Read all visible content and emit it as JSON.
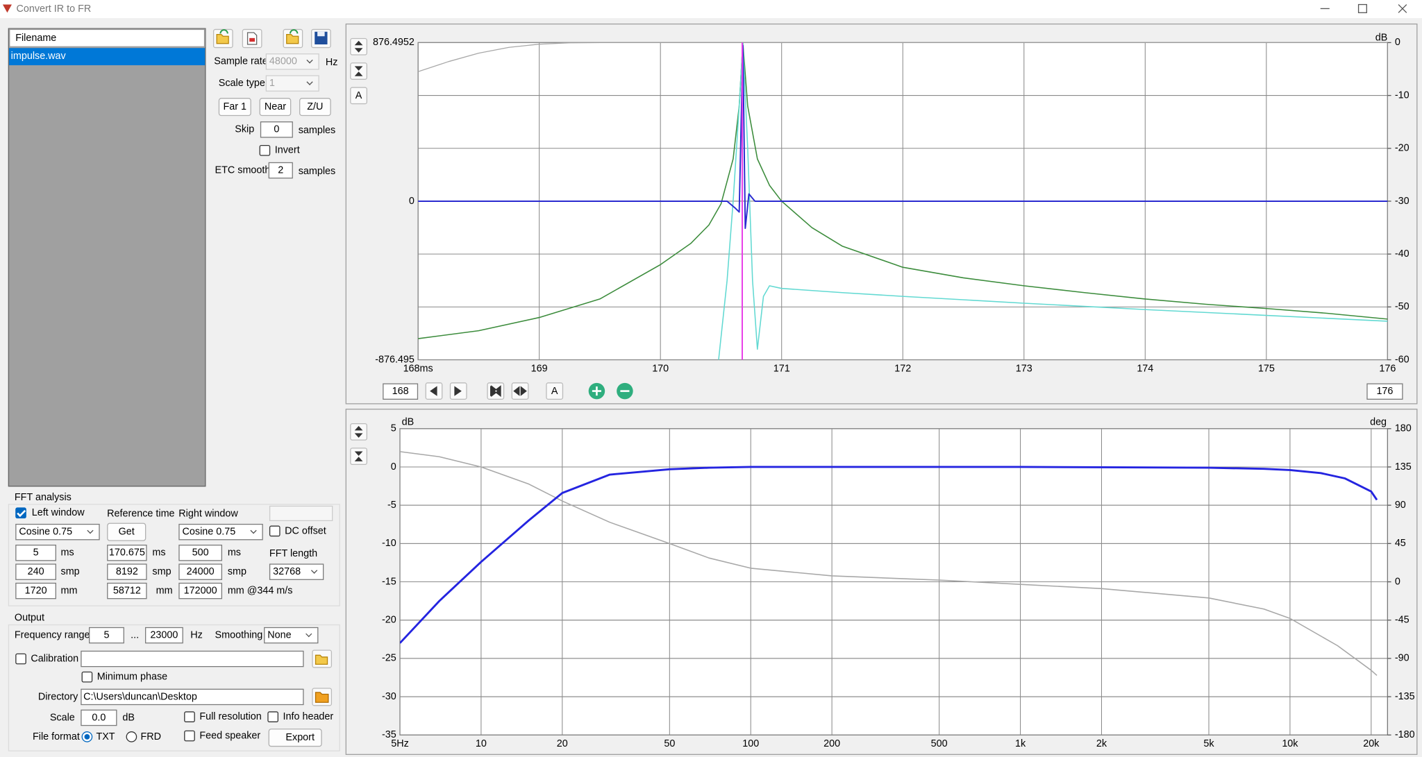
{
  "window": {
    "title": "Convert IR to FR"
  },
  "file_list": {
    "header": "Filename",
    "items": [
      "impulse.wav"
    ]
  },
  "settings": {
    "sample_rate": {
      "label": "Sample rate",
      "value": "48000",
      "unit": "Hz"
    },
    "scale_type": {
      "label": "Scale type",
      "value": "1"
    },
    "buttons": [
      "Far 1",
      "Near",
      "Z/U"
    ],
    "skip": {
      "label": "Skip",
      "value": "0",
      "unit": "samples"
    },
    "invert": "Invert",
    "etc_smooth": {
      "label": "ETC smooth",
      "value": "2",
      "unit": "samples"
    }
  },
  "impulse_toolbar": {
    "auto_side": "A",
    "auto_bottom": "A",
    "start": "168",
    "end": "176"
  },
  "fft": {
    "title": "FFT analysis",
    "left_window": {
      "label": "Left window",
      "type": "Cosine 0.75",
      "ms": "5",
      "smp": "240",
      "mm": "1720"
    },
    "reference_time": {
      "label": "Reference time",
      "button": "Get",
      "ms": 170.675,
      "smp": "8192",
      "mm": "58712"
    },
    "right_window": {
      "label": "Right window",
      "type": "Cosine 0.75",
      "ms": "500",
      "smp": "24000",
      "mm": "172000"
    },
    "dc_offset": "DC offset",
    "fft_length": {
      "label": "FFT length",
      "value": "32768"
    },
    "units": {
      "ms": "ms",
      "smp": "smp",
      "mm": "mm",
      "mm_speed": "mm @344 m/s"
    }
  },
  "output": {
    "title": "Output",
    "frequency_range": {
      "label": "Frequency range",
      "from": "5",
      "separator": "...",
      "to": "23000",
      "unit": "Hz"
    },
    "smoothing": {
      "label": "Smoothing",
      "value": "None"
    },
    "calibration": "Calibration",
    "minimum_phase": "Minimum phase",
    "directory": {
      "label": "Directory",
      "value": "C:\\Users\\duncan\\Desktop"
    },
    "scale": {
      "label": "Scale",
      "value": "0.0",
      "unit": "dB"
    },
    "full_resolution": "Full resolution",
    "info_header": "Info header",
    "file_format": {
      "label": "File format",
      "options": [
        "TXT",
        "FRD"
      ]
    },
    "feed_speaker": "Feed speaker",
    "export": "Export"
  },
  "chart_data": [
    {
      "type": "line",
      "xscale": "linear",
      "xlim": [
        168,
        176
      ],
      "xticks": [
        {
          "value": 168,
          "label": "168ms"
        },
        169,
        170,
        171,
        172,
        173,
        174,
        175,
        176
      ],
      "ylim": [
        -876.495,
        876.4952
      ],
      "yticks": [
        876.4952,
        0,
        -876.495
      ],
      "y2lim": [
        -60,
        0
      ],
      "y2ticks": [
        0,
        -10,
        -20,
        -30,
        -40,
        -50,
        -60
      ],
      "y2label": "dB",
      "grid": true,
      "cursor_color": "#e83ce8",
      "series": [
        {
          "color": "#a8a8a8",
          "line_width": 1,
          "axis": "y2",
          "x": [
            168,
            168.25,
            168.5,
            168.75,
            169,
            169.25,
            169.5,
            176
          ],
          "values": [
            -5.5,
            -3.6,
            -2,
            -0.9,
            -0.3,
            -0.05,
            0,
            0
          ]
        },
        {
          "color": "#3c8c3c",
          "line_width": 1.2,
          "axis": "y2",
          "x": [
            168,
            168.5,
            169,
            169.5,
            170,
            170.25,
            170.4,
            170.5,
            170.6,
            170.65,
            170.68,
            170.72,
            170.8,
            170.9,
            171,
            171.25,
            171.5,
            172,
            172.5,
            173,
            173.5,
            174,
            174.5,
            175,
            175.5,
            176
          ],
          "values": [
            -56,
            -54.5,
            -52,
            -48.5,
            -42,
            -38,
            -34.5,
            -30.5,
            -22,
            -12,
            0,
            -12,
            -22,
            -27,
            -30,
            -35,
            -38.5,
            -42.5,
            -44.5,
            -46,
            -47.3,
            -48.5,
            -49.5,
            -50.3,
            -51.2,
            -52.3
          ]
        },
        {
          "color": "#62d9d2",
          "line_width": 1.2,
          "axis": "y2",
          "x": [
            170.48,
            170.55,
            170.6,
            170.65,
            170.68,
            170.72,
            170.76,
            170.8,
            170.85,
            170.9,
            171,
            171.5,
            172,
            173,
            174,
            175,
            176
          ],
          "values": [
            -60,
            -45,
            -30,
            -12,
            0,
            -20,
            -45,
            -58,
            -48,
            -46,
            -46.5,
            -47.3,
            -48,
            -49.3,
            -50.5,
            -51.6,
            -52.7
          ]
        },
        {
          "color": "#2a2ad0",
          "line_width": 1.5,
          "axis": "y",
          "x": [
            168,
            170.55,
            170.62,
            170.65,
            170.68,
            170.7,
            170.73,
            170.78,
            176
          ],
          "values": [
            0,
            0,
            -40,
            -60,
            860,
            -150,
            40,
            0,
            0
          ]
        }
      ]
    },
    {
      "type": "line",
      "xscale": "log",
      "xlim": [
        5,
        23000
      ],
      "xticks": [
        {
          "value": 5,
          "label": "5Hz"
        },
        10,
        20,
        50,
        100,
        200,
        500,
        {
          "value": 1000,
          "label": "1k"
        },
        {
          "value": 2000,
          "label": "2k"
        },
        {
          "value": 5000,
          "label": "5k"
        },
        {
          "value": 10000,
          "label": "10k"
        },
        {
          "value": 20000,
          "label": "20k"
        }
      ],
      "ylim": [
        -35,
        5
      ],
      "yticks": [
        5,
        0,
        -5,
        -10,
        -15,
        -20,
        -25,
        -30,
        -35
      ],
      "ylabel": "dB",
      "y2lim": [
        -180,
        180
      ],
      "y2ticks": [
        180,
        135,
        90,
        45,
        0,
        -45,
        -90,
        -135,
        -180
      ],
      "y2label": "deg",
      "grid": true,
      "series": [
        {
          "color": "#a8a8a8",
          "line_width": 1.2,
          "axis": "y2",
          "x": [
            5,
            7,
            10,
            15,
            20,
            30,
            50,
            70,
            100,
            200,
            500,
            1000,
            2000,
            5000,
            8000,
            10000,
            15000,
            20000,
            21000
          ],
          "values": [
            153,
            147,
            135,
            115,
            95,
            70,
            45,
            28,
            16,
            7,
            2,
            -3,
            -8,
            -19,
            -32,
            -43,
            -75,
            -104,
            -110
          ]
        },
        {
          "color": "#2424e0",
          "line_width": 2.2,
          "axis": "y",
          "x": [
            5,
            7,
            10,
            15,
            20,
            30,
            50,
            70,
            100,
            1000,
            5000,
            8000,
            10000,
            13000,
            16000,
            20000,
            21000
          ],
          "values": [
            -23,
            -17.5,
            -12.4,
            -7,
            -3.4,
            -1,
            -0.3,
            -0.1,
            0,
            0,
            -0.1,
            -0.25,
            -0.4,
            -0.8,
            -1.5,
            -3.2,
            -4.3
          ]
        }
      ]
    }
  ]
}
